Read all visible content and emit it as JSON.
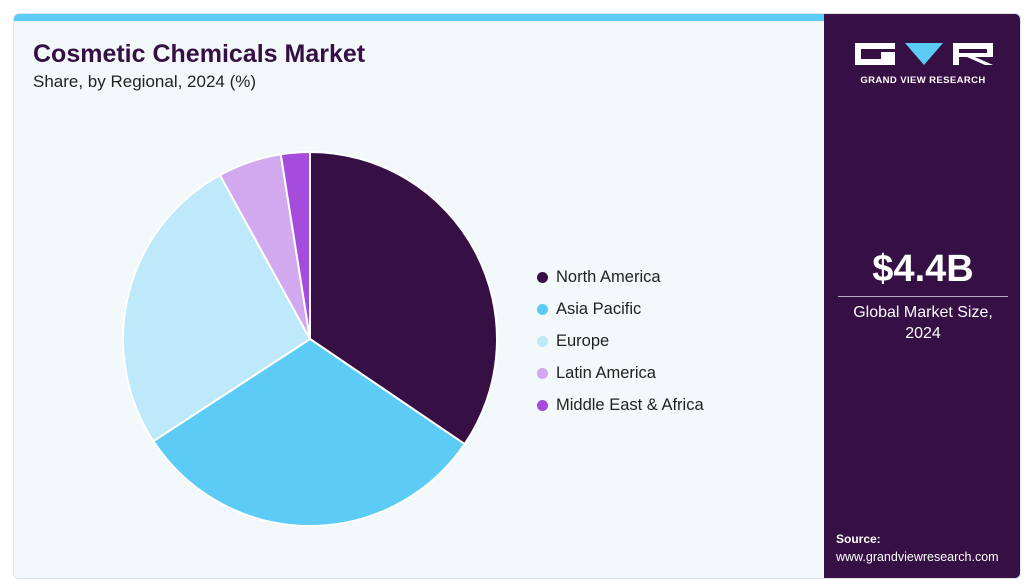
{
  "header": {
    "title": "Cosmetic Chemicals Market",
    "subtitle": "Share, by Regional, 2024 (%)"
  },
  "chart_data": {
    "type": "pie",
    "title": "Cosmetic Chemicals Market",
    "subtitle": "Share, by Regional, 2024 (%)",
    "legend_position": "right",
    "start_angle_deg": 0,
    "direction": "clockwise",
    "slices": [
      {
        "name": "North America",
        "value": 34.5,
        "color": "#360f45"
      },
      {
        "name": "Asia Pacific",
        "value": 31.3,
        "color": "#5ccbf5"
      },
      {
        "name": "Europe",
        "value": 26.2,
        "color": "#bde9fa"
      },
      {
        "name": "Latin America",
        "value": 5.5,
        "color": "#d2a9ee"
      },
      {
        "name": "Middle East & Africa",
        "value": 2.5,
        "color": "#a64cdc"
      }
    ]
  },
  "sidebar": {
    "brand": "GRAND VIEW RESEARCH",
    "market_value": "$4.4B",
    "market_label_line1": "Global Market Size,",
    "market_label_line2": "2024",
    "source_label": "Source:",
    "source_url": "www.grandviewresearch.com"
  },
  "colors": {
    "accent": "#5ccbf5",
    "brand_dark": "#360f45",
    "background": "#f3f8fb"
  }
}
